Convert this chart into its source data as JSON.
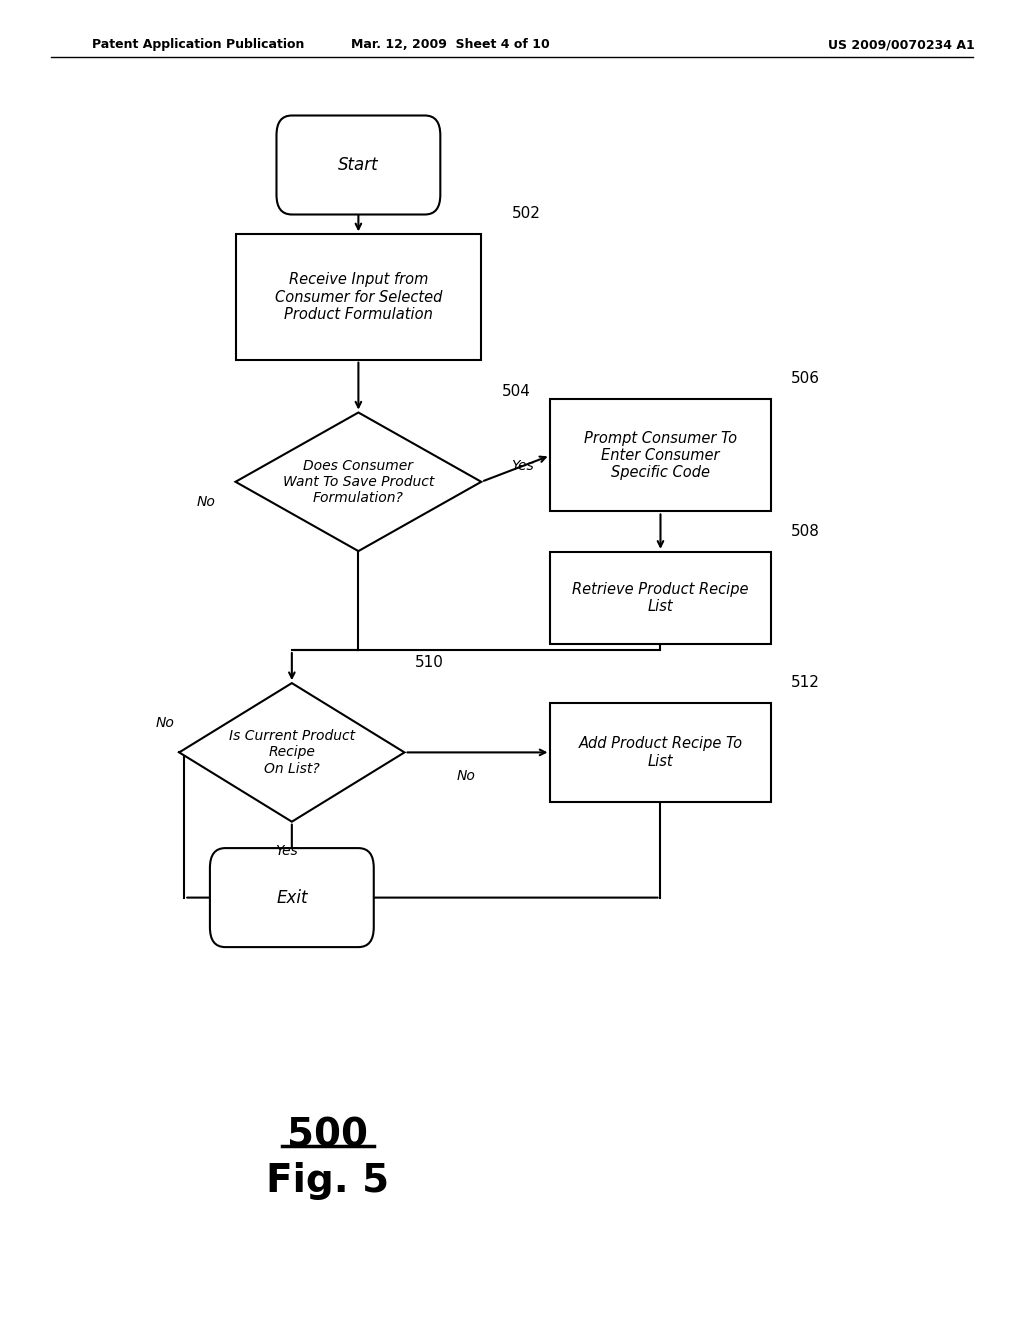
{
  "header_left": "Patent Application Publication",
  "header_mid": "Mar. 12, 2009  Sheet 4 of 10",
  "header_right": "US 2009/0070234 A1",
  "fig_label": "500",
  "fig_name": "Fig. 5",
  "background_color": "#ffffff",
  "line_color": "#000000"
}
